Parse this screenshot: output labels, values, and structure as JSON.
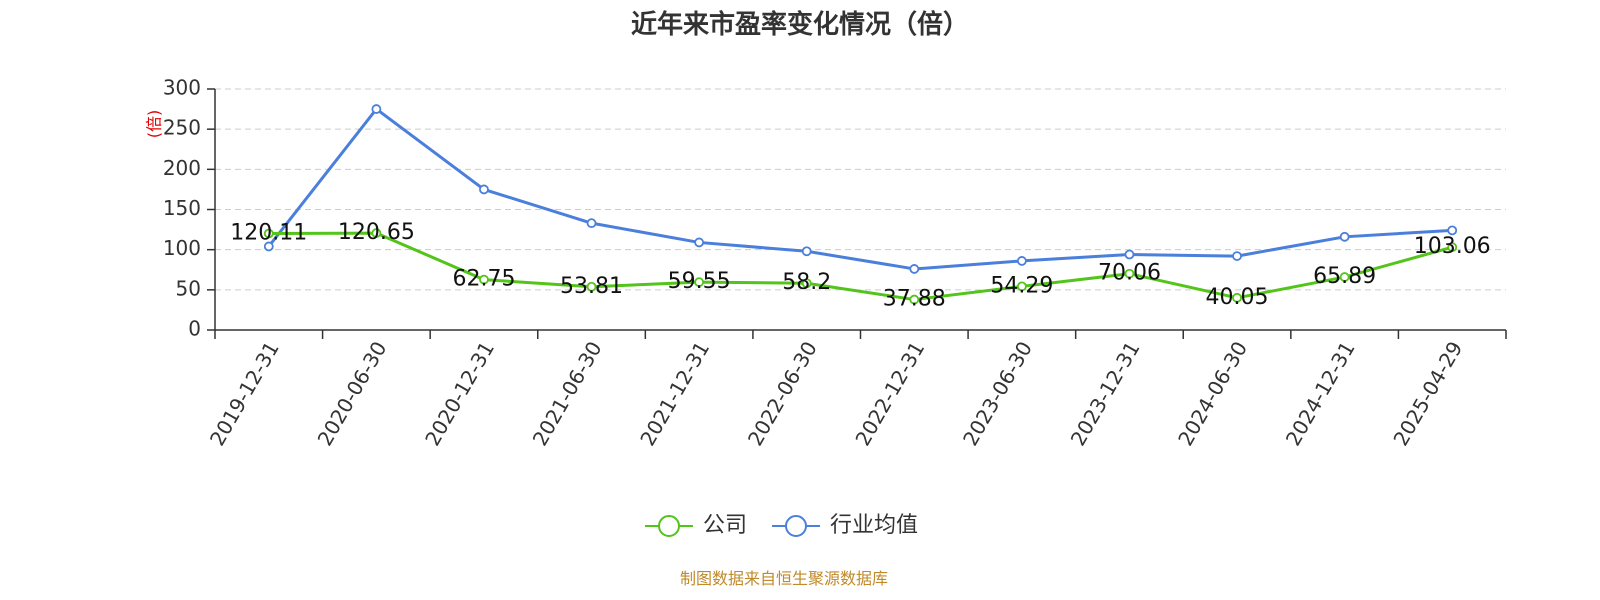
{
  "chart_data": {
    "type": "line",
    "title": "近年来市盈率变化情况（倍）",
    "ylabel": "(倍)",
    "xlabel": "",
    "categories": [
      "2019-12-31",
      "2020-06-30",
      "2020-12-31",
      "2021-06-30",
      "2021-12-31",
      "2022-06-30",
      "2022-12-31",
      "2023-06-30",
      "2023-12-31",
      "2024-06-30",
      "2024-12-31",
      "2025-04-29"
    ],
    "ylim": [
      0,
      300
    ],
    "yticks": [
      0,
      50,
      100,
      150,
      200,
      250,
      300
    ],
    "grid": true,
    "legend_position": "bottom",
    "series": [
      {
        "name": "公司",
        "color": "#52c41a",
        "values": [
          120.11,
          120.65,
          62.75,
          53.81,
          59.55,
          58.2,
          37.88,
          54.29,
          70.06,
          40.05,
          65.89,
          103.06
        ],
        "labels": [
          "120.11",
          "120.65",
          "62.75",
          "53.81",
          "59.55",
          "58.2",
          "37.88",
          "54.29",
          "70.06",
          "40.05",
          "65.89",
          "103.06"
        ]
      },
      {
        "name": "行业均值",
        "color": "#4a7fdc",
        "values": [
          104,
          275,
          175,
          133,
          109,
          98,
          76,
          86,
          94,
          92,
          116,
          124
        ]
      }
    ]
  },
  "source": "制图数据来自恒生聚源数据库"
}
